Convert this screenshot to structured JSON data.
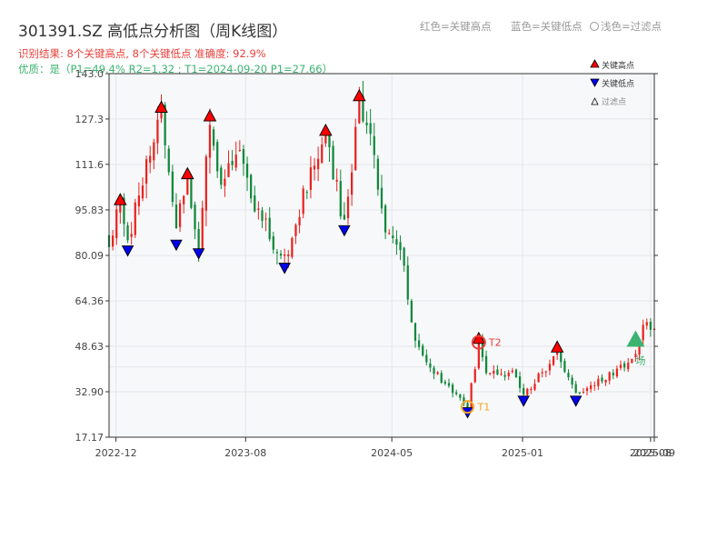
{
  "chart_data": {
    "type": "candlestick",
    "title": "301391.SZ 高低点分析图（周K线图）",
    "subtitle_red": "识别结果: 8个关键高点, 8个关键低点  准确度: 92.9%",
    "subtitle_green": "优质：是（P1=49.4%  R2=1.32 ; T1=2024-09-20 P1=27.66）",
    "header_legend": [
      "红色=关键高点",
      "蓝色=关键低点",
      "浅色=过滤点"
    ],
    "legend": [
      "关键高点",
      "关键低点",
      "过滤点"
    ],
    "xlim": [
      "2022-11-18",
      "2025-09-05"
    ],
    "ylim": [
      17.17,
      143.0
    ],
    "yticks": [
      17.17,
      32.9,
      48.63,
      64.36,
      80.09,
      95.83,
      111.6,
      127.3,
      143.0
    ],
    "xticks": [
      {
        "date": "2022-12-01",
        "label": "2022-12"
      },
      {
        "date": "2023-08-01",
        "label": "2023-08"
      },
      {
        "date": "2024-05-01",
        "label": "2024-05"
      },
      {
        "date": "2025-01-01",
        "label": "2025-01"
      },
      {
        "date": "2025-08-29",
        "label": "2025-08"
      },
      {
        "date": "2025-09-05",
        "label": "2025-09"
      }
    ],
    "anchors": [
      [
        "2022-11-18",
        86
      ],
      [
        "2022-12-09",
        97
      ],
      [
        "2022-12-23",
        84
      ],
      [
        "2023-01-13",
        104
      ],
      [
        "2023-02-24",
        129
      ],
      [
        "2023-03-24",
        90
      ],
      [
        "2023-04-14",
        106
      ],
      [
        "2023-05-05",
        83
      ],
      [
        "2023-05-26",
        126
      ],
      [
        "2023-06-16",
        104
      ],
      [
        "2023-07-14",
        118
      ],
      [
        "2023-08-18",
        97
      ],
      [
        "2023-10-13",
        78
      ],
      [
        "2023-11-24",
        105
      ],
      [
        "2023-12-29",
        121
      ],
      [
        "2024-02-02",
        91
      ],
      [
        "2024-03-01",
        133
      ],
      [
        "2024-03-29",
        115
      ],
      [
        "2024-04-19",
        90
      ],
      [
        "2024-05-17",
        82
      ],
      [
        "2024-06-14",
        50
      ],
      [
        "2024-07-12",
        41
      ],
      [
        "2024-09-20",
        28
      ],
      [
        "2024-10-11",
        49
      ],
      [
        "2024-10-25",
        40
      ],
      [
        "2024-12-13",
        39
      ],
      [
        "2025-01-03",
        32
      ],
      [
        "2025-02-14",
        41
      ],
      [
        "2025-03-07",
        46
      ],
      [
        "2025-04-11",
        32
      ],
      [
        "2025-05-30",
        37
      ],
      [
        "2025-07-25",
        44
      ],
      [
        "2025-08-15",
        55
      ],
      [
        "2025-09-05",
        56
      ]
    ],
    "key_highs": [
      [
        "2022-12-09",
        97
      ],
      [
        "2023-02-24",
        129
      ],
      [
        "2023-04-14",
        106
      ],
      [
        "2023-05-26",
        126
      ],
      [
        "2023-12-29",
        121
      ],
      [
        "2024-03-01",
        133
      ],
      [
        "2024-10-11",
        49
      ],
      [
        "2025-03-07",
        46
      ]
    ],
    "key_lows": [
      [
        "2022-12-23",
        84
      ],
      [
        "2023-03-24",
        86
      ],
      [
        "2023-05-05",
        83
      ],
      [
        "2023-10-13",
        78
      ],
      [
        "2024-02-02",
        91
      ],
      [
        "2024-09-20",
        28
      ],
      [
        "2025-01-03",
        32
      ],
      [
        "2025-04-11",
        32
      ]
    ],
    "markers": [
      {
        "label": "T1",
        "date": "2024-09-20",
        "value": 27.66,
        "color": "#f5a623"
      },
      {
        "label": "T2",
        "date": "2024-10-11",
        "value": 50,
        "color": "#e8413b"
      },
      {
        "label": "场",
        "date": "2025-08-01",
        "value": 51,
        "color": "#3cb371"
      }
    ],
    "colors": {
      "up": "#e8231f",
      "down": "#10883a",
      "high": "#ff0000",
      "low": "#0000ee",
      "filtered": "#aaaaaa"
    }
  }
}
